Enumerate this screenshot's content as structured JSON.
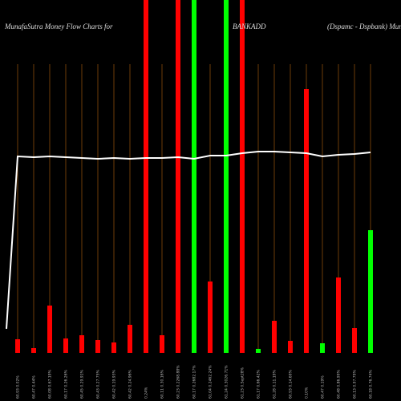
{
  "chart_data": {
    "type": "bar",
    "title_left": "MunafaSutra  Money Flow  Charts for",
    "title_center": "BANKADD",
    "title_right": "(Dspamc - Dspbank) Mum",
    "categories": [
      "60.93 0.02%",
      "60.47 0.44%",
      "60.08 0.67.19%",
      "60.17 0.26.26%",
      "60.45 0.29.91%",
      "60.43 0.27.75%",
      "60.42 0.19.93%",
      "60.42 0.24.96%",
      "0.24%",
      "60.11 0.30.16%",
      "60.23 0.2268.88%",
      "60.17 0.2682.17%",
      "61.04 0.2462.24%",
      "61.24 0.3026.71%",
      "61.23 0.Sept28%",
      "61.17 0.66.42%",
      "61.28 0.11.19%",
      "60.93 0.14.69%",
      "0.10%",
      "60.47 0.19%",
      "60.48 0.86.99%",
      "60.13 0.97.79%",
      "60.18 0.76.74%"
    ],
    "values": [
      17,
      6,
      59,
      18,
      22,
      16,
      13,
      35,
      440,
      22,
      440,
      440,
      89,
      440,
      440,
      5,
      40,
      15,
      329,
      12,
      94,
      31,
      153
    ],
    "colors": [
      "#ff0000",
      "#ff0000",
      "#ff0000",
      "#ff0000",
      "#ff0000",
      "#ff0000",
      "#ff0000",
      "#ff0000",
      "#ff0000",
      "#ff0000",
      "#ff0000",
      "#00ff00",
      "#ff0000",
      "#00ff00",
      "#ff0000",
      "#00ff00",
      "#ff0000",
      "#ff0000",
      "#ff0000",
      "#00ff00",
      "#ff0000",
      "#ff0000",
      "#00ff00"
    ],
    "ylim": [
      0,
      440
    ],
    "line": {
      "color": "#ffffff",
      "x": [
        -0.7,
        0,
        1,
        2,
        3,
        4,
        5,
        6,
        7,
        8,
        9,
        10,
        11,
        12,
        13,
        14,
        15,
        16,
        17,
        18,
        19,
        20,
        21,
        22
      ],
      "values": [
        30,
        245,
        244,
        245,
        244,
        243,
        242,
        243,
        242,
        243,
        243,
        244,
        242,
        246,
        246,
        249,
        251,
        251,
        250,
        249,
        245,
        247,
        248,
        250
      ]
    }
  }
}
